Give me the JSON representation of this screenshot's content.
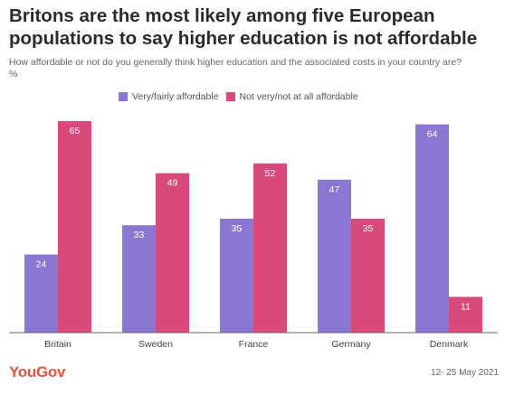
{
  "header": {
    "title": "Britons are the most likely among five European populations to say higher education is not affordable",
    "subtitle": "How affordable or not do you generally think higher education and the associated costs in your country are?",
    "unit": "%"
  },
  "colors": {
    "affordable": "#8a77d2",
    "not_affordable": "#d94a7c",
    "baseline": "#666666"
  },
  "chart_data": {
    "type": "bar",
    "categories": [
      "Britain",
      "Sweden",
      "France",
      "Germany",
      "Denmark"
    ],
    "series": [
      {
        "name": "Very/fairly affordable",
        "values": [
          24,
          33,
          35,
          47,
          64
        ]
      },
      {
        "name": "Not very/not at all affordable",
        "values": [
          65,
          49,
          52,
          35,
          11
        ]
      }
    ],
    "ylim": [
      0,
      65
    ],
    "legend": "top",
    "grid": false
  },
  "footer": {
    "logo": "YouGov",
    "date": "12- 25 May 2021"
  }
}
